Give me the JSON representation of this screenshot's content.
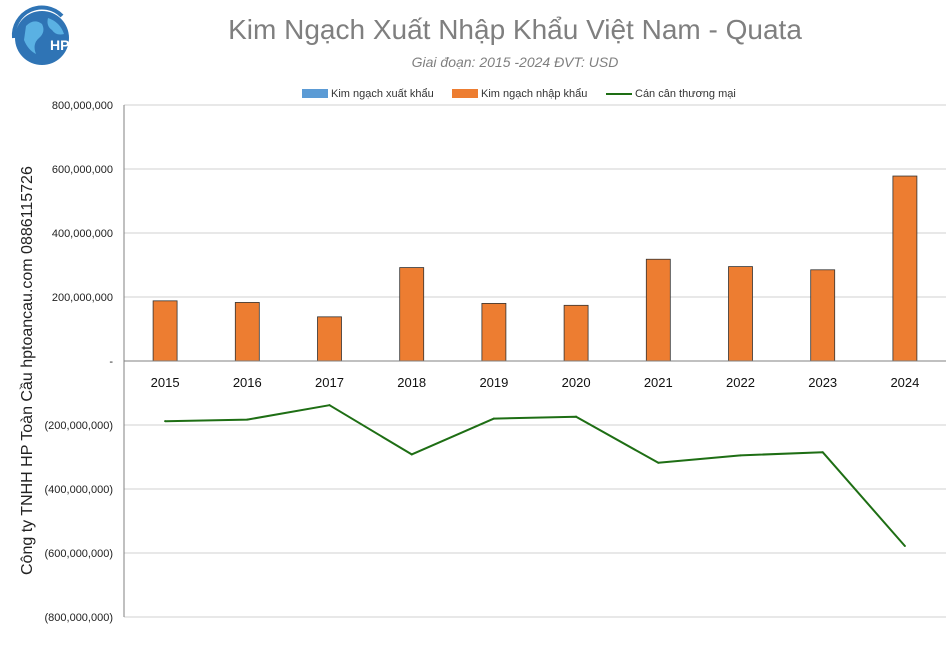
{
  "header": {
    "title": "Kim Ngạch Xuất Nhập Khẩu Việt Nam - Quata",
    "subtitle": "Giai đoạn: 2015 -2024  ĐVT: USD",
    "side_note": "Công ty TNHH HP Toàn Cầu hptoancau.com 0886115726",
    "logo_text": "HP"
  },
  "colors": {
    "export": "#5b9bd5",
    "import": "#ed7d31",
    "balance": "#1e6e14",
    "grid": "#d0d0d0",
    "axis": "#808080"
  },
  "chart_data": {
    "type": "bar",
    "categories": [
      "2015",
      "2016",
      "2017",
      "2018",
      "2019",
      "2020",
      "2021",
      "2022",
      "2023",
      "2024"
    ],
    "series": [
      {
        "name": "Kim ngạch xuất khẩu",
        "type": "bar",
        "values": [
          0,
          0,
          0,
          0,
          0,
          0,
          0,
          0,
          0,
          0
        ]
      },
      {
        "name": "Kim ngạch nhập khẩu",
        "type": "bar",
        "values": [
          188000000,
          183000000,
          138000000,
          292000000,
          180000000,
          174000000,
          318000000,
          295000000,
          285000000,
          578000000
        ]
      },
      {
        "name": "Cán cân thương mại",
        "type": "line",
        "values": [
          -188000000,
          -183000000,
          -138000000,
          -292000000,
          -180000000,
          -174000000,
          -318000000,
          -295000000,
          -285000000,
          -578000000
        ]
      }
    ],
    "ylim": [
      -800000000,
      800000000
    ],
    "y_ticks": [
      {
        "value": 800000000,
        "label": "800,000,000"
      },
      {
        "value": 600000000,
        "label": "600,000,000"
      },
      {
        "value": 400000000,
        "label": "400,000,000"
      },
      {
        "value": 200000000,
        "label": "200,000,000"
      },
      {
        "value": 0,
        "label": "-"
      },
      {
        "value": -200000000,
        "label": "(200,000,000)"
      },
      {
        "value": -400000000,
        "label": "(400,000,000)"
      },
      {
        "value": -600000000,
        "label": "(600,000,000)"
      },
      {
        "value": -800000000,
        "label": "(800,000,000)"
      }
    ],
    "grid": true,
    "legend": "top"
  }
}
